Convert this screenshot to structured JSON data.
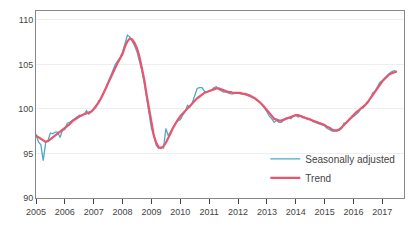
{
  "chart_data": {
    "type": "line",
    "x": [
      2005,
      2005.083,
      2005.167,
      2005.25,
      2005.333,
      2005.417,
      2005.5,
      2005.583,
      2005.667,
      2005.75,
      2005.833,
      2005.917,
      2006,
      2006.083,
      2006.167,
      2006.25,
      2006.333,
      2006.417,
      2006.5,
      2006.583,
      2006.667,
      2006.75,
      2006.833,
      2006.917,
      2007,
      2007.083,
      2007.167,
      2007.25,
      2007.333,
      2007.417,
      2007.5,
      2007.583,
      2007.667,
      2007.75,
      2007.833,
      2007.917,
      2008,
      2008.083,
      2008.167,
      2008.25,
      2008.333,
      2008.417,
      2008.5,
      2008.583,
      2008.667,
      2008.75,
      2008.833,
      2008.917,
      2009,
      2009.083,
      2009.167,
      2009.25,
      2009.333,
      2009.417,
      2009.5,
      2009.583,
      2009.667,
      2009.75,
      2009.833,
      2009.917,
      2010,
      2010.083,
      2010.167,
      2010.25,
      2010.333,
      2010.417,
      2010.5,
      2010.583,
      2010.667,
      2010.75,
      2010.833,
      2010.917,
      2011,
      2011.083,
      2011.167,
      2011.25,
      2011.333,
      2011.417,
      2011.5,
      2011.583,
      2011.667,
      2011.75,
      2011.833,
      2011.917,
      2012,
      2012.083,
      2012.167,
      2012.25,
      2012.333,
      2012.417,
      2012.5,
      2012.583,
      2012.667,
      2012.75,
      2012.833,
      2012.917,
      2013,
      2013.083,
      2013.167,
      2013.25,
      2013.333,
      2013.417,
      2013.5,
      2013.583,
      2013.667,
      2013.75,
      2013.833,
      2013.917,
      2014,
      2014.083,
      2014.167,
      2014.25,
      2014.333,
      2014.417,
      2014.5,
      2014.583,
      2014.667,
      2014.75,
      2014.833,
      2014.917,
      2015,
      2015.083,
      2015.167,
      2015.25,
      2015.333,
      2015.417,
      2015.5,
      2015.583,
      2015.667,
      2015.75,
      2015.833,
      2015.917,
      2016,
      2016.083,
      2016.167,
      2016.25,
      2016.333,
      2016.417,
      2016.5,
      2016.583,
      2016.667,
      2016.75,
      2016.833,
      2016.917,
      2017,
      2017.083,
      2017.167,
      2017.25,
      2017.333,
      2017.417,
      2017.5
    ],
    "series": [
      {
        "name": "Seasonally adjusted",
        "color": "#4baac8",
        "values": [
          97.2,
          96.3,
          96.0,
          94.2,
          96.2,
          96.5,
          97.3,
          97.2,
          97.4,
          97.4,
          96.8,
          97.6,
          97.7,
          98.4,
          98.5,
          98.7,
          99.0,
          99.1,
          99.3,
          99.2,
          99.4,
          99.8,
          99.4,
          99.7,
          100.0,
          100.2,
          100.9,
          101.1,
          101.7,
          102.4,
          102.9,
          103.7,
          104.4,
          105.0,
          105.4,
          105.8,
          106.4,
          107.3,
          108.3,
          108.1,
          107.6,
          107.1,
          106.4,
          105.4,
          104.3,
          102.9,
          101.2,
          99.3,
          97.8,
          97.0,
          95.9,
          95.6,
          95.7,
          95.6,
          97.8,
          97.0,
          97.5,
          97.9,
          98.4,
          98.7,
          98.8,
          99.3,
          99.7,
          100.4,
          100.2,
          100.7,
          101.4,
          102.3,
          102.4,
          102.4,
          102.0,
          101.9,
          102.0,
          102.1,
          102.4,
          102.5,
          102.2,
          102.0,
          101.9,
          101.9,
          101.8,
          101.7,
          101.7,
          101.8,
          101.8,
          101.7,
          101.7,
          101.6,
          101.5,
          101.4,
          101.4,
          101.1,
          100.9,
          100.8,
          100.5,
          100.1,
          99.7,
          99.2,
          98.9,
          98.5,
          98.7,
          98.5,
          98.5,
          98.8,
          99.0,
          99.0,
          98.9,
          99.2,
          99.3,
          99.1,
          99.2,
          99.0,
          99.0,
          98.8,
          98.9,
          98.6,
          98.5,
          98.4,
          98.3,
          98.2,
          98.1,
          97.8,
          97.7,
          97.5,
          97.5,
          97.5,
          97.6,
          97.8,
          98.4,
          98.4,
          98.7,
          98.9,
          99.2,
          99.4,
          99.6,
          100.0,
          100.1,
          100.4,
          100.7,
          101.2,
          101.8,
          102.0,
          102.5,
          103.0,
          103.2,
          103.5,
          103.8,
          104.0,
          104.2,
          104.3,
          104.2
        ]
      },
      {
        "name": "Trend",
        "color": "#e8556d",
        "values": [
          97.0,
          96.8,
          96.6,
          96.4,
          96.3,
          96.4,
          96.6,
          96.8,
          97.0,
          97.2,
          97.4,
          97.6,
          97.8,
          98.1,
          98.3,
          98.6,
          98.8,
          99.0,
          99.2,
          99.3,
          99.4,
          99.5,
          99.6,
          99.7,
          100.0,
          100.3,
          100.7,
          101.2,
          101.7,
          102.3,
          102.9,
          103.5,
          104.1,
          104.7,
          105.2,
          105.7,
          106.2,
          107.0,
          107.6,
          107.9,
          107.8,
          107.4,
          106.8,
          105.9,
          104.7,
          103.3,
          101.6,
          99.9,
          98.2,
          97.0,
          96.2,
          95.7,
          95.6,
          95.8,
          96.2,
          96.7,
          97.3,
          97.9,
          98.4,
          98.8,
          99.2,
          99.5,
          99.8,
          100.1,
          100.4,
          100.7,
          101.0,
          101.2,
          101.4,
          101.6,
          101.8,
          101.9,
          102.0,
          102.1,
          102.2,
          102.3,
          102.3,
          102.2,
          102.1,
          102.0,
          101.9,
          101.9,
          101.8,
          101.8,
          101.8,
          101.8,
          101.7,
          101.7,
          101.6,
          101.5,
          101.3,
          101.2,
          101.0,
          100.8,
          100.5,
          100.2,
          99.9,
          99.5,
          99.2,
          98.9,
          98.8,
          98.7,
          98.7,
          98.8,
          98.9,
          99.0,
          99.1,
          99.2,
          99.3,
          99.3,
          99.2,
          99.1,
          99.0,
          98.9,
          98.8,
          98.7,
          98.6,
          98.5,
          98.4,
          98.3,
          98.2,
          98.0,
          97.9,
          97.7,
          97.6,
          97.6,
          97.7,
          97.9,
          98.2,
          98.5,
          98.8,
          99.1,
          99.4,
          99.6,
          99.8,
          100.0,
          100.3,
          100.5,
          100.8,
          101.2,
          101.5,
          101.9,
          102.3,
          102.7,
          103.1,
          103.4,
          103.7,
          103.9,
          104.0,
          104.1,
          104.2
        ]
      }
    ],
    "xlim": [
      2005.0,
      2017.75
    ],
    "ylim": [
      90,
      111
    ],
    "xticks": [
      2005,
      2006,
      2007,
      2008,
      2009,
      2010,
      2011,
      2012,
      2013,
      2014,
      2015,
      2016,
      2017
    ],
    "yticks": [
      90,
      95,
      100,
      105,
      110
    ],
    "grid": "y",
    "legend": "lower right"
  }
}
